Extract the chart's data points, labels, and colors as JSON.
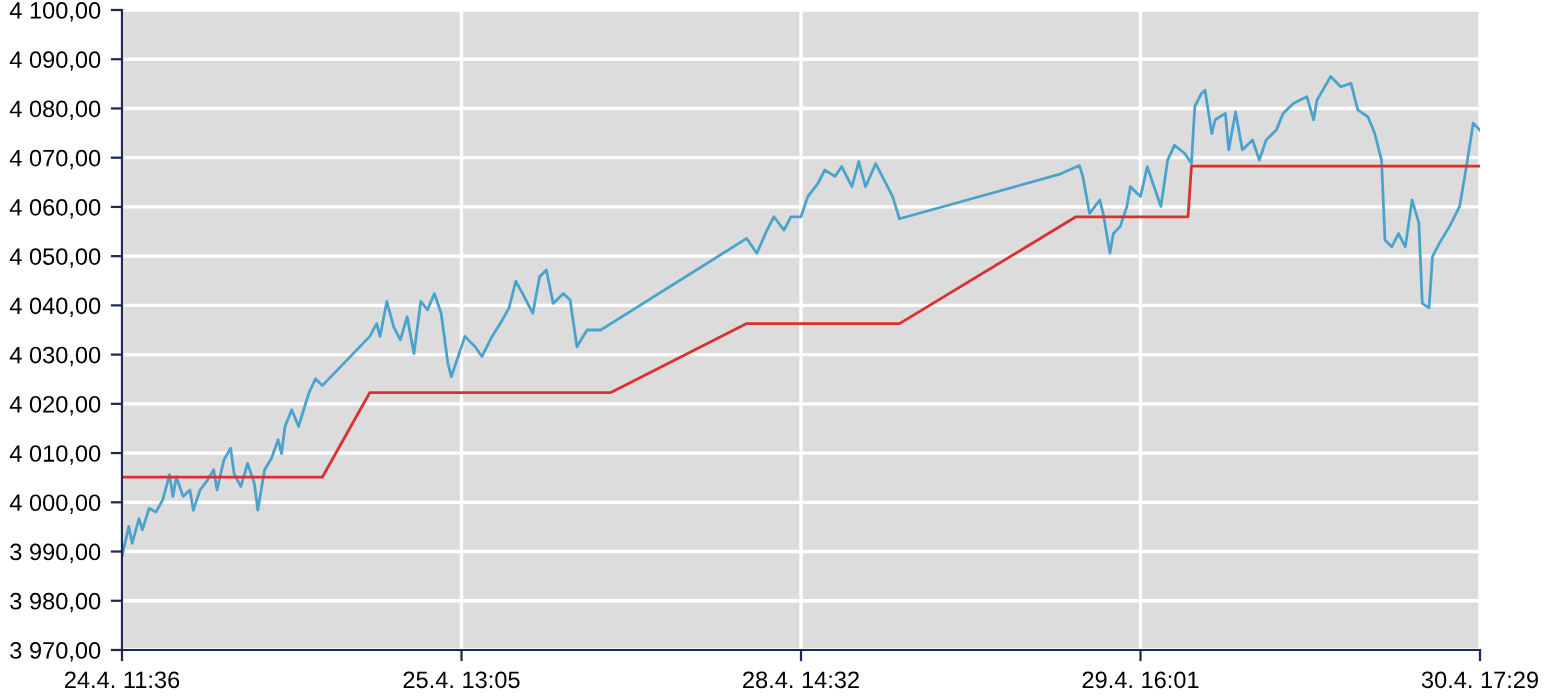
{
  "chart_data": {
    "type": "line",
    "grid": true,
    "legend": false,
    "marker": "none",
    "line_style": "solid",
    "categories": [
      "24.4. 11:36",
      null,
      null,
      null,
      null,
      null,
      null,
      null,
      null,
      null,
      null,
      null,
      null,
      null,
      null,
      null,
      null,
      null,
      null,
      null,
      null,
      null,
      null,
      null,
      null,
      null,
      null,
      null,
      null,
      null,
      null,
      null,
      null,
      null,
      null,
      null,
      null,
      null,
      null,
      null,
      null,
      null,
      null,
      null,
      null,
      null,
      null,
      null,
      null,
      null,
      null,
      null,
      null,
      null,
      null,
      null,
      null,
      null,
      null,
      null,
      null,
      null,
      null,
      null,
      null,
      null,
      null,
      null,
      null,
      null,
      null,
      null,
      null,
      null,
      null,
      null,
      null,
      null,
      null,
      null,
      null,
      null,
      null,
      null,
      null,
      null,
      null,
      null,
      null,
      null,
      null,
      null,
      null,
      null,
      null,
      null,
      null,
      null,
      null,
      null,
      "25.4. 13:05",
      null,
      null,
      null,
      null,
      null,
      null,
      null,
      null,
      null,
      null,
      null,
      null,
      null,
      null,
      null,
      null,
      null,
      null,
      null,
      null,
      null,
      null,
      null,
      null,
      null,
      null,
      null,
      null,
      null,
      null,
      null,
      null,
      null,
      null,
      null,
      null,
      null,
      null,
      null,
      null,
      null,
      null,
      null,
      null,
      null,
      null,
      null,
      null,
      null,
      null,
      null,
      null,
      null,
      null,
      null,
      null,
      null,
      null,
      null,
      null,
      null,
      null,
      null,
      null,
      null,
      null,
      null,
      null,
      null,
      null,
      null,
      null,
      null,
      null,
      null,
      null,
      null,
      null,
      null,
      null,
      null,
      null,
      null,
      null,
      null,
      null,
      null,
      null,
      null,
      null,
      null,
      null,
      null,
      null,
      null,
      null,
      null,
      null,
      null,
      "28.4. 14:32",
      null,
      null,
      null,
      null,
      null,
      null,
      null,
      null,
      null,
      null,
      null,
      null,
      null,
      null,
      null,
      null,
      null,
      null,
      null,
      null,
      null,
      null,
      null,
      null,
      null,
      null,
      null,
      null,
      null,
      null,
      null,
      null,
      null,
      null,
      null,
      null,
      null,
      null,
      null,
      null,
      null,
      null,
      null,
      null,
      null,
      null,
      null,
      null,
      null,
      null,
      null,
      null,
      null,
      null,
      null,
      null,
      null,
      null,
      null,
      null,
      null,
      null,
      null,
      null,
      null,
      null,
      null,
      null,
      null,
      null,
      null,
      null,
      null,
      null,
      null,
      null,
      null,
      null,
      null,
      null,
      null,
      null,
      null,
      null,
      null,
      null,
      null,
      null,
      null,
      null,
      null,
      null,
      null,
      null,
      null,
      null,
      null,
      null,
      null,
      "29.4. 16:01",
      null,
      null,
      null,
      null,
      null,
      null,
      null,
      null,
      null,
      null,
      null,
      null,
      null,
      null,
      null,
      null,
      null,
      null,
      null,
      null,
      null,
      null,
      null,
      null,
      null,
      null,
      null,
      null,
      null,
      null,
      null,
      null,
      null,
      null,
      null,
      null,
      null,
      null,
      null,
      null,
      null,
      null,
      null,
      null,
      null,
      null,
      null,
      null,
      null,
      null,
      null,
      null,
      null,
      null,
      null,
      null,
      null,
      null,
      null,
      null,
      null,
      null,
      null,
      null,
      null,
      null,
      null,
      null,
      null,
      null,
      null,
      null,
      null,
      null,
      null,
      null,
      null,
      null,
      null,
      null,
      null,
      null,
      null,
      null,
      null,
      null,
      null,
      null,
      null,
      null,
      null,
      null,
      null,
      null,
      null,
      null,
      null,
      null,
      null,
      "30.4. 17:29"
    ],
    "ylim": [
      3970,
      4100
    ],
    "yticks": [
      {
        "value": 3970,
        "label": "3 970,00"
      },
      {
        "value": 3980,
        "label": "3 980,00"
      },
      {
        "value": 3990,
        "label": "3 990,00"
      },
      {
        "value": 4000,
        "label": "4 000,00"
      },
      {
        "value": 4010,
        "label": "4 010,00"
      },
      {
        "value": 4020,
        "label": "4 020,00"
      },
      {
        "value": 4030,
        "label": "4 030,00"
      },
      {
        "value": 4040,
        "label": "4 040,00"
      },
      {
        "value": 4050,
        "label": "4 050,00"
      },
      {
        "value": 4060,
        "label": "4 060,00"
      },
      {
        "value": 4070,
        "label": "4 070,00"
      },
      {
        "value": 4080,
        "label": "4 080,00"
      },
      {
        "value": 4090,
        "label": "4 090,00"
      },
      {
        "value": 4100,
        "label": "4 100,00"
      }
    ],
    "series": [
      {
        "color": "#4aa3cc",
        "values": [
          3989.0,
          null,
          3995.1,
          3991.7,
          null,
          3996.7,
          3994.4,
          null,
          3998.8,
          null,
          3998.0,
          null,
          4000.5,
          null,
          4005.6,
          4001.2,
          4005.2,
          null,
          4001.2,
          null,
          4002.5,
          3998.4,
          null,
          4002.5,
          null,
          4004.3,
          null,
          4006.6,
          4002.5,
          null,
          4008.6,
          null,
          4011.0,
          4005.9,
          null,
          4003.2,
          null,
          4007.9,
          null,
          4003.8,
          3998.4,
          null,
          4006.6,
          null,
          4008.9,
          null,
          4012.7,
          4009.9,
          4015.4,
          null,
          4018.8,
          null,
          4015.4,
          null,
          null,
          4022.1,
          null,
          4025.1,
          null,
          4023.7,
          null,
          null,
          null,
          null,
          null,
          null,
          null,
          null,
          null,
          null,
          null,
          null,
          null,
          4033.7,
          null,
          4036.3,
          4033.7,
          null,
          4040.8,
          null,
          4035.7,
          null,
          4033.0,
          null,
          4037.7,
          null,
          4030.2,
          null,
          4040.8,
          null,
          4039.1,
          null,
          4042.4,
          null,
          4038.4,
          null,
          4028.2,
          4025.5,
          null,
          4029.6,
          null,
          4033.7,
          null,
          null,
          4031.6,
          null,
          4029.6,
          null,
          null,
          4033.7,
          null,
          null,
          4037.0,
          null,
          4039.5,
          null,
          4044.9,
          null,
          4042.4,
          null,
          null,
          4038.4,
          null,
          4045.8,
          null,
          4047.2,
          null,
          4040.4,
          null,
          null,
          4042.4,
          null,
          4041.1,
          null,
          4031.6,
          null,
          null,
          4035.0,
          null,
          null,
          null,
          4035.0,
          null,
          null,
          4036.3,
          null,
          null,
          null,
          null,
          null,
          null,
          null,
          null,
          null,
          null,
          null,
          null,
          null,
          null,
          null,
          null,
          null,
          null,
          null,
          null,
          null,
          null,
          null,
          null,
          null,
          null,
          null,
          null,
          null,
          null,
          null,
          null,
          null,
          null,
          null,
          null,
          null,
          null,
          null,
          4053.6,
          null,
          null,
          4050.6,
          null,
          null,
          4055.3,
          null,
          4058.0,
          null,
          null,
          4055.3,
          null,
          4058.0,
          null,
          null,
          4058.0,
          null,
          4062.1,
          null,
          null,
          4064.8,
          null,
          4067.5,
          null,
          null,
          4066.2,
          null,
          4068.2,
          null,
          null,
          4064.1,
          null,
          4069.2,
          null,
          4064.1,
          null,
          null,
          4068.8,
          null,
          null,
          4064.8,
          null,
          4062.1,
          null,
          4057.6,
          null,
          null,
          null,
          null,
          null,
          null,
          null,
          null,
          null,
          null,
          null,
          null,
          null,
          null,
          null,
          null,
          null,
          null,
          null,
          null,
          null,
          null,
          null,
          null,
          null,
          null,
          null,
          null,
          null,
          null,
          null,
          null,
          null,
          null,
          null,
          null,
          null,
          null,
          null,
          null,
          null,
          null,
          null,
          null,
          null,
          null,
          4066.6,
          null,
          null,
          null,
          null,
          null,
          4068.4,
          4066.2,
          null,
          4058.7,
          null,
          null,
          4061.4,
          4058.7,
          null,
          4050.6,
          4054.6,
          null,
          4056.0,
          null,
          4060.1,
          4064.1,
          null,
          null,
          4062.1,
          null,
          4068.2,
          null,
          4064.1,
          null,
          4060.1,
          null,
          4069.5,
          null,
          4072.5,
          null,
          null,
          4070.9,
          null,
          4068.8,
          4080.4,
          null,
          4083.1,
          4083.7,
          null,
          4074.9,
          4077.7,
          null,
          null,
          4079.0,
          4071.6,
          null,
          4079.3,
          null,
          4071.6,
          null,
          null,
          4073.6,
          null,
          4069.5,
          null,
          4073.6,
          null,
          null,
          4075.6,
          null,
          4079.0,
          null,
          null,
          4081.0,
          null,
          4081.7,
          null,
          4082.4,
          null,
          4077.7,
          4081.7,
          null,
          null,
          null,
          4086.5,
          null,
          null,
          4084.4,
          null,
          null,
          4085.1,
          null,
          4079.7,
          null,
          null,
          4078.3,
          null,
          4074.9,
          null,
          4069.5,
          4053.3,
          null,
          4051.9,
          null,
          4054.6,
          null,
          4051.9,
          null,
          4061.4,
          null,
          4056.7,
          4040.4,
          null,
          4039.5,
          4049.9,
          null,
          4052.6,
          null,
          null,
          4056.0,
          null,
          null,
          4060.1,
          null,
          4068.2,
          null,
          4077.0,
          null,
          4075.6
        ]
      },
      {
        "color": "#d93030",
        "values": [
          4005.1,
          null,
          null,
          null,
          null,
          null,
          null,
          null,
          null,
          null,
          null,
          null,
          null,
          null,
          null,
          null,
          null,
          null,
          null,
          null,
          null,
          null,
          null,
          null,
          null,
          null,
          null,
          null,
          null,
          null,
          null,
          null,
          null,
          null,
          null,
          null,
          null,
          null,
          null,
          null,
          null,
          null,
          null,
          null,
          null,
          null,
          null,
          null,
          null,
          null,
          null,
          null,
          null,
          null,
          null,
          null,
          null,
          null,
          null,
          4005.1,
          null,
          null,
          null,
          null,
          null,
          null,
          null,
          null,
          null,
          null,
          null,
          null,
          null,
          4022.3,
          null,
          null,
          null,
          null,
          null,
          null,
          null,
          null,
          null,
          null,
          null,
          null,
          null,
          null,
          null,
          null,
          null,
          null,
          null,
          null,
          null,
          null,
          null,
          null,
          null,
          null,
          null,
          null,
          null,
          null,
          null,
          null,
          null,
          null,
          null,
          null,
          null,
          null,
          null,
          null,
          null,
          null,
          null,
          null,
          null,
          null,
          null,
          null,
          null,
          null,
          null,
          null,
          null,
          null,
          null,
          null,
          null,
          null,
          null,
          null,
          null,
          null,
          null,
          null,
          null,
          null,
          null,
          null,
          null,
          null,
          4022.3,
          null,
          null,
          null,
          null,
          null,
          null,
          null,
          null,
          null,
          null,
          null,
          null,
          null,
          null,
          null,
          null,
          null,
          null,
          null,
          null,
          null,
          null,
          null,
          null,
          null,
          null,
          null,
          null,
          null,
          null,
          null,
          null,
          null,
          null,
          null,
          null,
          null,
          null,
          null,
          4036.3,
          null,
          null,
          null,
          null,
          null,
          null,
          null,
          null,
          null,
          null,
          null,
          null,
          null,
          null,
          null,
          null,
          null,
          null,
          null,
          null,
          null,
          null,
          null,
          null,
          null,
          null,
          null,
          null,
          null,
          null,
          null,
          null,
          null,
          null,
          null,
          null,
          null,
          null,
          null,
          null,
          null,
          null,
          null,
          null,
          4036.3,
          null,
          null,
          null,
          null,
          null,
          null,
          null,
          null,
          null,
          null,
          null,
          null,
          null,
          null,
          null,
          null,
          null,
          null,
          null,
          null,
          null,
          null,
          null,
          null,
          null,
          null,
          null,
          null,
          null,
          null,
          null,
          null,
          null,
          null,
          null,
          null,
          null,
          null,
          null,
          null,
          null,
          null,
          null,
          null,
          null,
          null,
          null,
          null,
          null,
          null,
          null,
          4058.0,
          null,
          null,
          null,
          null,
          null,
          null,
          null,
          null,
          null,
          null,
          null,
          null,
          null,
          null,
          null,
          null,
          null,
          null,
          null,
          null,
          null,
          null,
          null,
          null,
          null,
          null,
          null,
          null,
          null,
          null,
          null,
          null,
          4058.0,
          4068.3,
          null,
          null,
          null,
          null,
          null,
          null,
          null,
          null,
          null,
          null,
          null,
          null,
          null,
          null,
          null,
          null,
          null,
          null,
          null,
          null,
          null,
          null,
          null,
          null,
          null,
          null,
          null,
          null,
          null,
          null,
          null,
          null,
          null,
          null,
          null,
          null,
          null,
          null,
          null,
          null,
          null,
          null,
          null,
          null,
          null,
          null,
          null,
          null,
          null,
          null,
          null,
          null,
          null,
          null,
          null,
          null,
          null,
          null,
          null,
          null,
          null,
          null,
          null,
          null,
          null,
          null,
          null,
          null,
          null,
          null,
          null,
          null,
          null,
          null,
          null,
          null,
          null,
          null,
          null,
          null,
          null,
          null,
          null,
          null,
          4068.3
        ]
      }
    ]
  }
}
